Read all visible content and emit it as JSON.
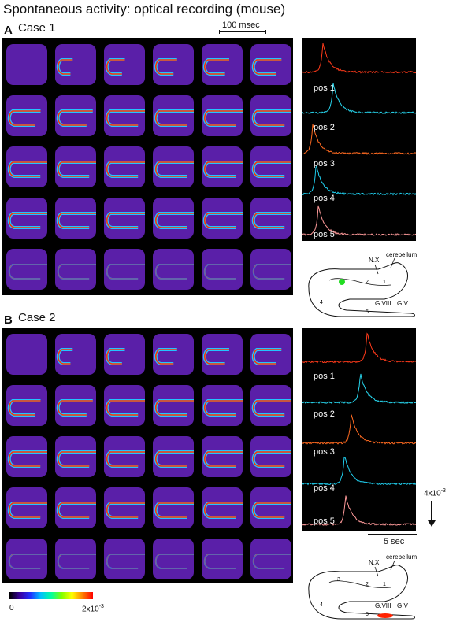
{
  "title": "Spontaneous activity: optical recording (mouse)",
  "panels": [
    {
      "id": "A",
      "label": "A",
      "case_label": "Case 1",
      "time_scale": "100 msec",
      "traces": [
        {
          "label": "pos 1",
          "color": "#ff3a1a",
          "peak": 0.18
        },
        {
          "label": "pos 2",
          "color": "#28d8f0",
          "peak": 0.27
        },
        {
          "label": "pos 3",
          "color": "#ff6a20",
          "peak": 0.09
        },
        {
          "label": "pos 4",
          "color": "#20d0f0",
          "peak": 0.12
        },
        {
          "label": "pos 5",
          "color": "#ff9a9a",
          "peak": 0.14
        }
      ],
      "diagram": {
        "nx": "N.X",
        "cerebellum": "cerebellum",
        "gviii": "G.VIII",
        "gv": "G.V",
        "n1": "1",
        "n2": "2",
        "n3": "",
        "n4": "4",
        "n5": "5",
        "spot_color": "#22dd22"
      }
    },
    {
      "id": "B",
      "label": "B",
      "case_label": "Case 2",
      "traces": [
        {
          "label": "pos 1",
          "color": "#ff3a1a",
          "peak": 0.57
        },
        {
          "label": "pos 2",
          "color": "#28d8f0",
          "peak": 0.51
        },
        {
          "label": "pos 3",
          "color": "#ff6a20",
          "peak": 0.43
        },
        {
          "label": "pos 4",
          "color": "#20d0f0",
          "peak": 0.37
        },
        {
          "label": "pos 5",
          "color": "#ff9a9a",
          "peak": 0.38
        }
      ],
      "diagram": {
        "nx": "N.X",
        "cerebellum": "cerebellum",
        "gviii": "G.VIII",
        "gv": "G.V",
        "n1": "1",
        "n2": "2",
        "n3": "3",
        "n4": "4",
        "n5": "5",
        "spot_color": "#ff2200"
      }
    }
  ],
  "colorbar": {
    "min": "0",
    "max": "2x10",
    "max_exp": "-3"
  },
  "amplitude_scale": {
    "text": "4x10",
    "exp": "-3"
  },
  "time_scale_traces": "5 sec"
}
